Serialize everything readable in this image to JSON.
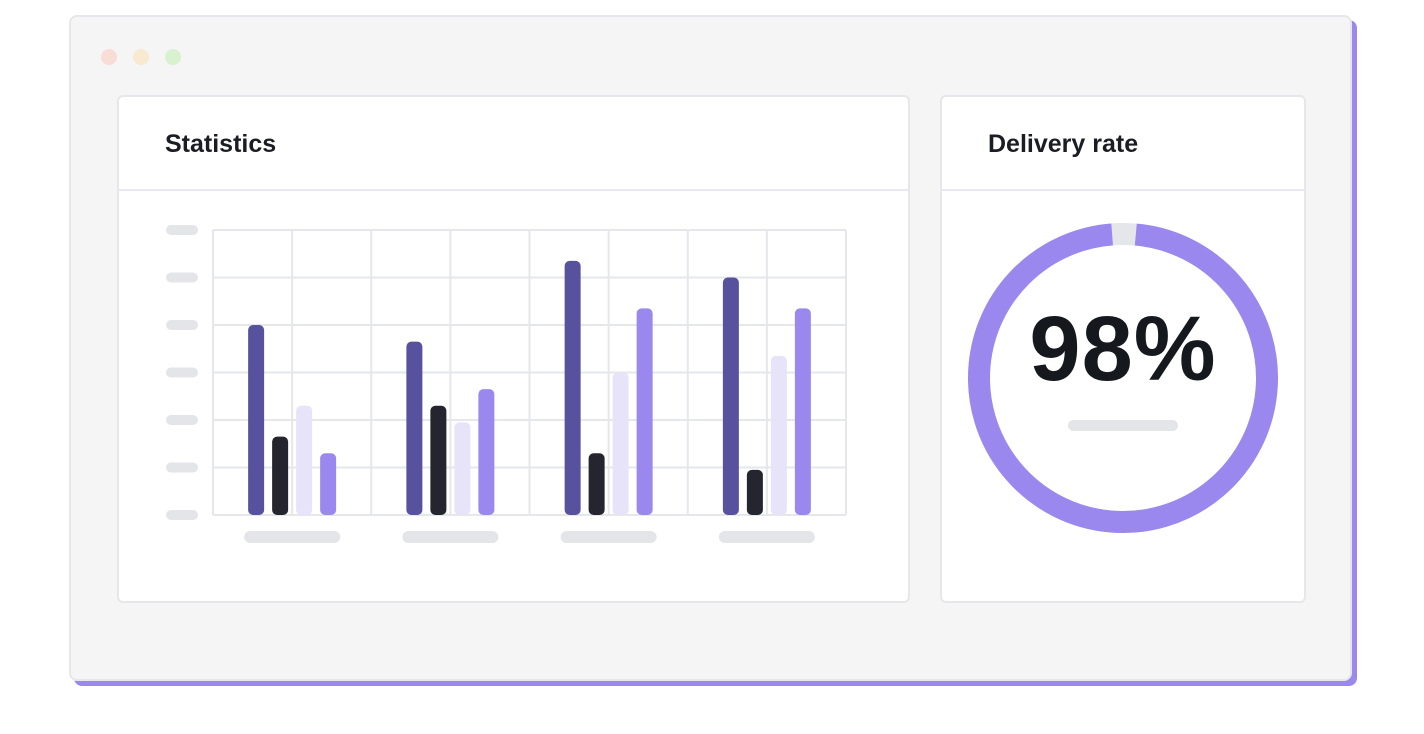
{
  "statistics": {
    "title": "Statistics"
  },
  "delivery": {
    "title": "Delivery rate",
    "value": "98%",
    "rate": 0.98
  },
  "colors": {
    "series_dark_purple": "#58519e",
    "series_black": "#25252f",
    "series_light": "#e7e3f8",
    "series_purple": "#9a88ef",
    "gauge_fill": "#9a88ef",
    "gauge_track": "#e4e6ea",
    "placeholder": "#e4e5e8",
    "grid": "#e6e7ea"
  },
  "chart_data": {
    "type": "bar",
    "categories": [
      "",
      "",
      "",
      ""
    ],
    "ylim": [
      0,
      6
    ],
    "grid": true,
    "series": [
      {
        "values": [
          4.0,
          3.65,
          5.35,
          5.0
        ]
      },
      {
        "values": [
          1.65,
          2.3,
          1.3,
          0.95
        ]
      },
      {
        "values": [
          2.3,
          1.95,
          3.0,
          3.35
        ]
      },
      {
        "values": [
          1.3,
          2.65,
          4.35,
          4.35
        ]
      }
    ]
  }
}
